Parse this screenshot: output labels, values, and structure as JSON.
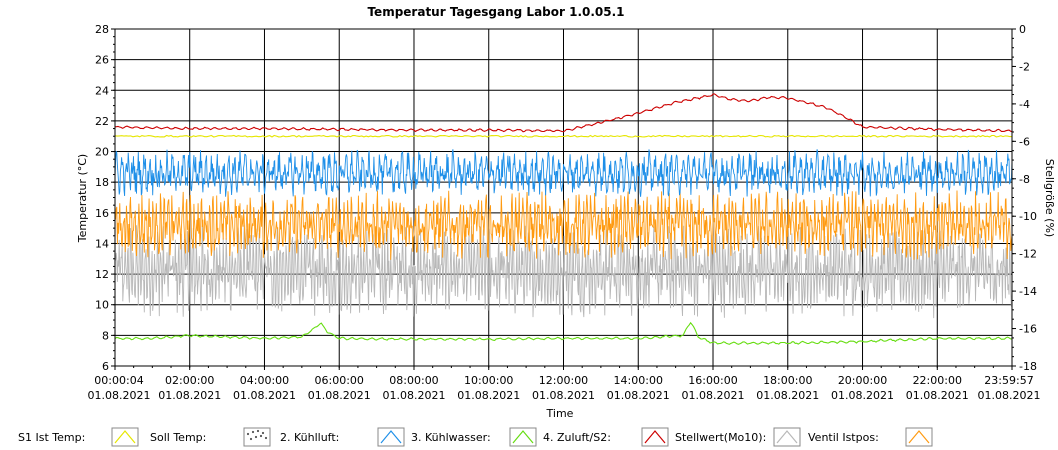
{
  "chart_data": {
    "type": "line",
    "title": "Temperatur Tagesgang Labor 1.0.05.1",
    "xlabel": "Time",
    "ylabel": "Temperatur (°C)",
    "y2label": "Stellgröße (%)",
    "ylim": [
      6,
      28
    ],
    "y2lim": [
      -18,
      0
    ],
    "yticks": [
      6,
      8,
      10,
      12,
      14,
      16,
      18,
      20,
      22,
      24,
      26,
      28
    ],
    "y2ticks": [
      -18,
      -16,
      -14,
      -12,
      -10,
      -8,
      -6,
      -4,
      -2,
      0
    ],
    "xlim_hours": [
      0.0011,
      23.999
    ],
    "xticks": [
      {
        "h": 0.0011,
        "time": "00:00:04",
        "date": "01.08.2021"
      },
      {
        "h": 2,
        "time": "02:00:00",
        "date": "01.08.2021"
      },
      {
        "h": 4,
        "time": "04:00:00",
        "date": "01.08.2021"
      },
      {
        "h": 6,
        "time": "06:00:00",
        "date": "01.08.2021"
      },
      {
        "h": 8,
        "time": "08:00:00",
        "date": "01.08.2021"
      },
      {
        "h": 10,
        "time": "10:00:00",
        "date": "01.08.2021"
      },
      {
        "h": 12,
        "time": "12:00:00",
        "date": "01.08.2021"
      },
      {
        "h": 14,
        "time": "14:00:00",
        "date": "01.08.2021"
      },
      {
        "h": 16,
        "time": "16:00:00",
        "date": "01.08.2021"
      },
      {
        "h": 18,
        "time": "18:00:00",
        "date": "01.08.2021"
      },
      {
        "h": 20,
        "time": "20:00:00",
        "date": "01.08.2021"
      },
      {
        "h": 22,
        "time": "22:00:00",
        "date": "01.08.2021"
      },
      {
        "h": 23.999,
        "time": "23:59:57",
        "date": "01.08.2021"
      }
    ],
    "grid": true,
    "legend_position": "bottom",
    "series": [
      {
        "name": "S1 Ist Temp:",
        "color": "#e6e600",
        "kind": "flat",
        "base": 21.0,
        "noise": 0.05
      },
      {
        "name": "Soll  Temp:",
        "color": "#555555",
        "kind": "none"
      },
      {
        "name": "2. Kühlluft:",
        "color": "#1e8fe8",
        "kind": "band",
        "base": 18.6,
        "amp": 1.3,
        "period": 0.15
      },
      {
        "name": "3. Kühlwasser:",
        "color": "#66dd11",
        "kind": "line",
        "x": [
          0,
          1,
          2,
          3,
          4,
          5,
          5.3,
          5.5,
          5.7,
          6,
          8,
          10,
          12,
          14,
          15.2,
          15.4,
          15.6,
          16,
          18,
          20,
          22,
          24
        ],
        "y": [
          7.8,
          7.8,
          8.0,
          7.9,
          7.8,
          7.9,
          8.4,
          8.8,
          8.2,
          7.8,
          7.75,
          7.75,
          7.8,
          7.8,
          8.0,
          8.9,
          7.9,
          7.5,
          7.5,
          7.6,
          7.8,
          7.8
        ]
      },
      {
        "name": "4. Zuluft/S2:",
        "color": "#cc0000",
        "kind": "line",
        "x": [
          0,
          2,
          4,
          6,
          8,
          10,
          12,
          13,
          14,
          15,
          16,
          16.5,
          17,
          17.5,
          18,
          19,
          19.5,
          20,
          22,
          24
        ],
        "y": [
          21.6,
          21.5,
          21.5,
          21.45,
          21.4,
          21.4,
          21.35,
          21.9,
          22.5,
          23.2,
          23.7,
          23.4,
          23.3,
          23.55,
          23.5,
          22.9,
          22.3,
          21.6,
          21.45,
          21.35
        ]
      },
      {
        "name": "Stellwert(Mo10):",
        "color": "#b8b8b8",
        "kind": "band",
        "base": 12.2,
        "amp": 2.6,
        "period": 0.08
      },
      {
        "name": "Ventil Istpos:",
        "color": "#ff9a10",
        "kind": "band",
        "base": 15.2,
        "amp": 1.9,
        "period": 0.1
      }
    ]
  }
}
